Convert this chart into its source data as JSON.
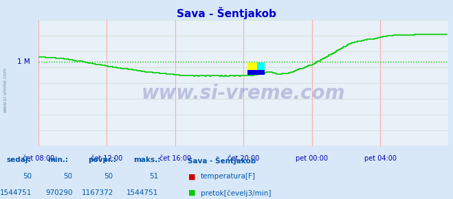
{
  "title": "Sava - Šentjakob",
  "title_color": "#0000cc",
  "bg_color": "#d8e8f8",
  "plot_bg_color": "#e8f0f8",
  "grid_color_v": "#ffaaaa",
  "grid_color_h": "#ccddcc",
  "xlabel_color": "#0000aa",
  "ylabel_color": "#0000aa",
  "x_tick_labels": [
    "čet 08:00",
    "čet 12:00",
    "čet 16:00",
    "čet 20:00",
    "pet 00:00",
    "pet 04:00"
  ],
  "y_label": "1 M",
  "y_min": 0,
  "y_max": 1750000,
  "flow_avg": 1167372,
  "line_color_flow": "#00cc00",
  "line_color_temp": "#cc0000",
  "avg_line_color": "#00cc00",
  "axis_color": "#cc0000",
  "watermark_text": "www.si-vreme.com",
  "watermark_color": "#1a1a8c",
  "side_watermark_color": "#6688aa",
  "legend_title": "Sava - Šentjakob",
  "legend_temp_label": "temperatura[F]",
  "legend_flow_label": "pretok[čevelj3/min]",
  "table_headers": [
    "sedaj:",
    "min.:",
    "povpr.:",
    "maks.:"
  ],
  "table_temp": [
    "50",
    "50",
    "50",
    "51"
  ],
  "table_flow": [
    "1544751",
    "970290",
    "1167372",
    "1544751"
  ],
  "temp_color": "#cc0000",
  "flow_color": "#00cc00",
  "table_color": "#0055aa"
}
